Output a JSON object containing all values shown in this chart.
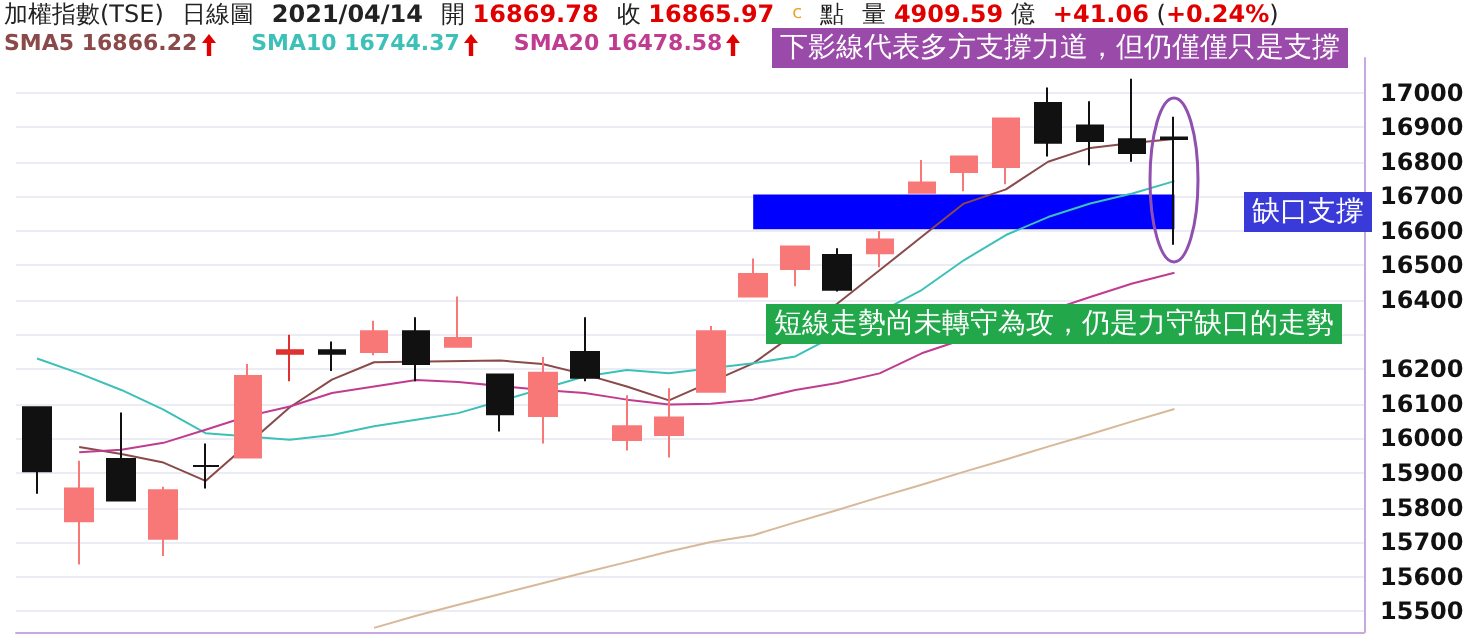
{
  "chart_data": {
    "type": "candlestick",
    "title": "加權指數(TSE)",
    "subtitle": "日線圖",
    "categories": [
      null,
      null,
      null,
      null,
      null,
      null,
      null,
      null,
      null,
      null,
      null,
      null,
      null,
      null,
      null,
      null,
      null,
      null,
      null,
      null,
      null,
      null,
      null,
      null,
      null,
      null,
      null,
      null
    ],
    "ohlc": [
      [
        16090,
        16090,
        15840,
        15905
      ],
      [
        15760,
        15935,
        15635,
        15855
      ],
      [
        15940,
        16075,
        15820,
        15820
      ],
      [
        15710,
        15860,
        15660,
        15850
      ],
      [
        15920,
        15985,
        15855,
        15920
      ],
      [
        15945,
        16215,
        15945,
        16180
      ],
      [
        16245,
        16300,
        16165,
        16255
      ],
      [
        16255,
        16280,
        16195,
        16245
      ],
      [
        16250,
        16340,
        16240,
        16310
      ],
      [
        16310,
        16350,
        16165,
        16215
      ],
      [
        16265,
        16410,
        16265,
        16290
      ],
      [
        16185,
        16185,
        16020,
        16070
      ],
      [
        16065,
        16235,
        15985,
        16190
      ],
      [
        16250,
        16350,
        16165,
        16175
      ],
      [
        15995,
        16125,
        15965,
        16035
      ],
      [
        16010,
        16145,
        15945,
        16060
      ],
      [
        16135,
        16325,
        16135,
        16310
      ],
      [
        16410,
        16520,
        16410,
        16475
      ],
      [
        16490,
        16555,
        16440,
        16555
      ],
      [
        16530,
        16550,
        16425,
        16430
      ],
      [
        16535,
        16600,
        16495,
        16575
      ],
      [
        16710,
        16805,
        16710,
        16740
      ],
      [
        16770,
        16815,
        16715,
        16815
      ],
      [
        16785,
        16925,
        16735,
        16925
      ],
      [
        16970,
        17015,
        16815,
        16855
      ],
      [
        16905,
        16975,
        16790,
        16860
      ],
      [
        16865,
        17040,
        16800,
        16825
      ],
      [
        16869.78,
        16930,
        16560,
        16865.97
      ]
    ],
    "colors": [
      "#111111",
      "#f87878",
      "#111111",
      "#f87878",
      "#111111",
      "#f87878",
      "#e03030",
      "#111111",
      "#f87878",
      "#111111",
      "#f87878",
      "#111111",
      "#f87878",
      "#111111",
      "#f87878",
      "#f87878",
      "#f87878",
      "#f87878",
      "#f87878",
      "#111111",
      "#f87878",
      "#f87878",
      "#f87878",
      "#f87878",
      "#111111",
      "#111111",
      "#111111",
      "#111111"
    ],
    "series": [
      {
        "type": "line",
        "name": "SMA5 16866.22",
        "color": "#8a4a4a",
        "values": [
          null,
          15975,
          15955,
          15930,
          15877,
          null,
          16090,
          16170,
          16220,
          null,
          null,
          16225,
          16215,
          16185,
          16150,
          16110,
          null,
          16217,
          null,
          16390,
          16486,
          16583,
          16679,
          16720,
          16800,
          16840,
          16854,
          16866
        ]
      },
      {
        "type": "line",
        "name": "SMA10 16744.37",
        "color": "#3cc0b8",
        "values": [
          16231,
          16188,
          16140,
          16083,
          16015,
          null,
          15996,
          16010,
          16035,
          16054,
          16073,
          null,
          null,
          16179,
          16198,
          16188,
          null,
          16217,
          16237,
          null,
          null,
          16429,
          16515,
          16588,
          16640,
          16679,
          16708,
          16744
        ]
      },
      {
        "type": "line",
        "name": "SMA20 16478.58",
        "color": "#c03c90",
        "values": [
          null,
          15960,
          15967,
          15987,
          16025,
          16064,
          16092,
          16131,
          16150,
          16169,
          16163,
          null,
          16140,
          16131,
          16112,
          16098,
          16100,
          16112,
          16140,
          16160,
          16188,
          16246,
          null,
          null,
          null,
          16409,
          16448,
          16479
        ]
      },
      {
        "type": "line",
        "color": "#d8b898",
        "values": [
          null,
          null,
          null,
          null,
          null,
          null,
          null,
          null,
          15452,
          15487,
          15519,
          15550,
          15581,
          15612,
          15642,
          15673,
          15700,
          15720,
          15757,
          15793,
          15830,
          15866,
          15903,
          15939,
          15976,
          16012,
          16049,
          16085
        ]
      }
    ],
    "ylim": [
      15440,
      17100
    ],
    "yticks": [
      15500,
      15600,
      15700,
      15800,
      15900,
      16000,
      16100,
      16200,
      {
        "value": 16300,
        "label": null
      },
      16400,
      16500,
      16600,
      16700,
      16800,
      16900,
      17000
    ],
    "grid": "y",
    "tick_labels": "y",
    "marker": "none",
    "bands": [
      {
        "axis": "y",
        "from": 16605,
        "to": 16705,
        "label": "缺口支撐",
        "color": "#0000ff"
      }
    ],
    "annotations": [
      "2021/04/14",
      "開 16869.78",
      "收 16865.97",
      "c",
      "點",
      "量 4909.59 億",
      "+41.06 (+0.24%)",
      "下影線代表多方支撐力道，但仍僅僅只是支撐",
      "短線走勢尚未轉守為攻，仍是力守缺口的走勢"
    ]
  }
}
